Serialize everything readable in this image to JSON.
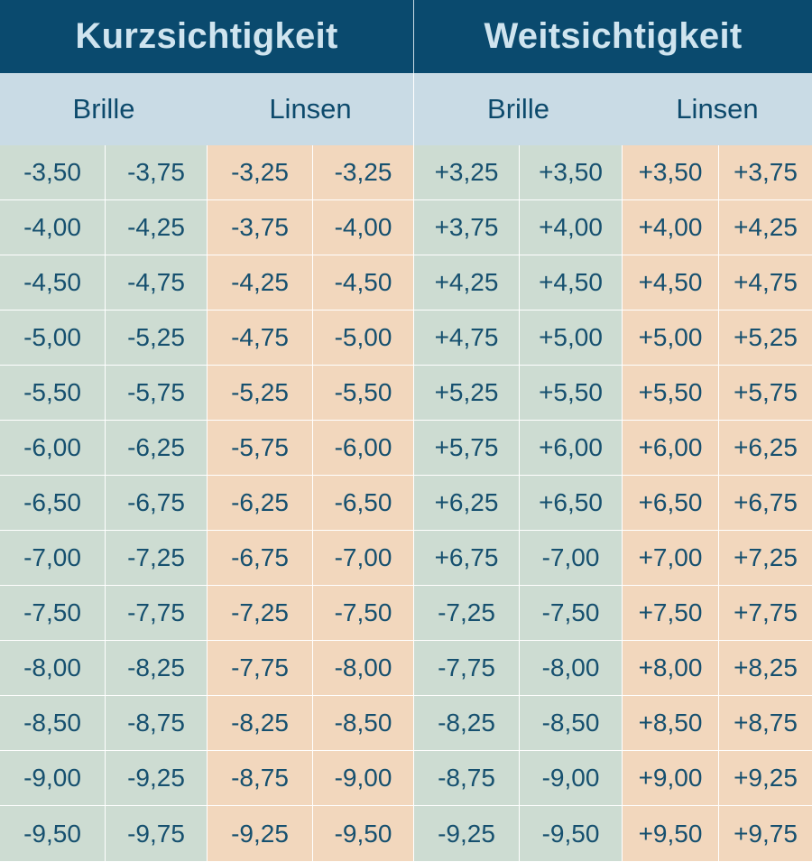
{
  "header": {
    "left_title": "Kurzsichtigkeit",
    "right_title": "Weitsichtigkeit"
  },
  "subheader": {
    "myopia_glasses": "Brille",
    "myopia_lenses": "Linsen",
    "hyperopia_glasses": "Brille",
    "hyperopia_lenses": "Linsen"
  },
  "colors": {
    "header_bg": "#0a4a6e",
    "subheader_bg": "#c9dbe5",
    "glasses_bg": "#cddcd2",
    "lenses_bg": "#f2d7bd",
    "text": "#16506f"
  },
  "rows": [
    [
      "-3,50",
      "-3,75",
      "-3,25",
      "-3,25",
      "+3,25",
      "+3,50",
      "+3,50",
      "+3,75"
    ],
    [
      "-4,00",
      "-4,25",
      "-3,75",
      "-4,00",
      "+3,75",
      "+4,00",
      "+4,00",
      "+4,25"
    ],
    [
      "-4,50",
      "-4,75",
      "-4,25",
      "-4,50",
      "+4,25",
      "+4,50",
      "+4,50",
      "+4,75"
    ],
    [
      "-5,00",
      "-5,25",
      "-4,75",
      "-5,00",
      "+4,75",
      "+5,00",
      "+5,00",
      "+5,25"
    ],
    [
      "-5,50",
      "-5,75",
      "-5,25",
      "-5,50",
      "+5,25",
      "+5,50",
      "+5,50",
      "+5,75"
    ],
    [
      "-6,00",
      "-6,25",
      "-5,75",
      "-6,00",
      "+5,75",
      "+6,00",
      "+6,00",
      "+6,25"
    ],
    [
      "-6,50",
      "-6,75",
      "-6,25",
      "-6,50",
      "+6,25",
      "+6,50",
      "+6,50",
      "+6,75"
    ],
    [
      "-7,00",
      "-7,25",
      "-6,75",
      "-7,00",
      "+6,75",
      "-7,00",
      "+7,00",
      "+7,25"
    ],
    [
      "-7,50",
      "-7,75",
      "-7,25",
      "-7,50",
      "-7,25",
      "-7,50",
      "+7,50",
      "+7,75"
    ],
    [
      "-8,00",
      "-8,25",
      "-7,75",
      "-8,00",
      "-7,75",
      "-8,00",
      "+8,00",
      "+8,25"
    ],
    [
      "-8,50",
      "-8,75",
      "-8,25",
      "-8,50",
      "-8,25",
      "-8,50",
      "+8,50",
      "+8,75"
    ],
    [
      "-9,00",
      "-9,25",
      "-8,75",
      "-9,00",
      "-8,75",
      "-9,00",
      "+9,00",
      "+9,25"
    ],
    [
      "-9,50",
      "-9,75",
      "-9,25",
      "-9,50",
      "-9,25",
      "-9,50",
      "+9,50",
      "+9,75"
    ]
  ]
}
